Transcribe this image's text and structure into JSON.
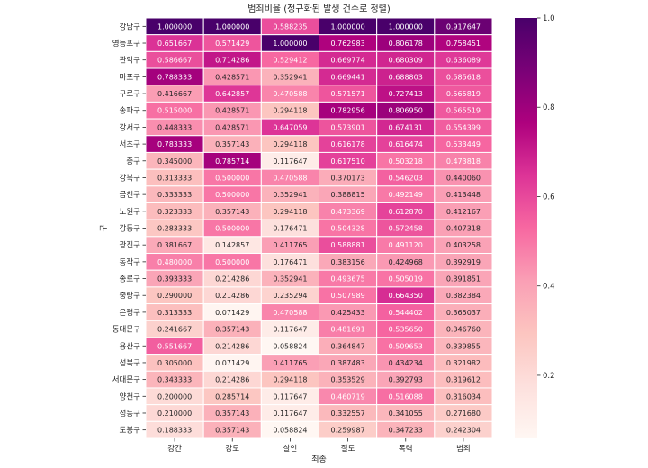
{
  "chart_data": {
    "type": "heatmap",
    "title": "범죄비율 (정규화된 발생 건수로 정렬)",
    "xlabel": "죄종",
    "ylabel": "구",
    "columns": [
      "강간",
      "강도",
      "살인",
      "절도",
      "폭력",
      "범죄"
    ],
    "rows": [
      "강남구",
      "영등포구",
      "관악구",
      "마포구",
      "구로구",
      "송파구",
      "강서구",
      "서초구",
      "중구",
      "강북구",
      "금천구",
      "노원구",
      "강동구",
      "광진구",
      "동작구",
      "종로구",
      "중랑구",
      "은평구",
      "동대문구",
      "용산구",
      "성북구",
      "서대문구",
      "양천구",
      "성동구",
      "도봉구"
    ],
    "values": [
      [
        1.0,
        1.0,
        0.588235,
        1.0,
        1.0,
        0.917647
      ],
      [
        0.651667,
        0.571429,
        1.0,
        0.762983,
        0.806178,
        0.758451
      ],
      [
        0.586667,
        0.714286,
        0.529412,
        0.669774,
        0.680309,
        0.636089
      ],
      [
        0.788333,
        0.428571,
        0.352941,
        0.669441,
        0.688803,
        0.585618
      ],
      [
        0.416667,
        0.642857,
        0.470588,
        0.571571,
        0.727413,
        0.565819
      ],
      [
        0.515,
        0.428571,
        0.294118,
        0.782956,
        0.80695,
        0.565519
      ],
      [
        0.448333,
        0.428571,
        0.647059,
        0.573901,
        0.674131,
        0.554399
      ],
      [
        0.783333,
        0.357143,
        0.294118,
        0.616178,
        0.616474,
        0.533449
      ],
      [
        0.345,
        0.785714,
        0.117647,
        0.61751,
        0.503218,
        0.473818
      ],
      [
        0.313333,
        0.5,
        0.470588,
        0.370173,
        0.546203,
        0.44006
      ],
      [
        0.333333,
        0.5,
        0.352941,
        0.388815,
        0.492149,
        0.413448
      ],
      [
        0.323333,
        0.357143,
        0.294118,
        0.473369,
        0.61287,
        0.412167
      ],
      [
        0.283333,
        0.5,
        0.176471,
        0.504328,
        0.572458,
        0.407318
      ],
      [
        0.381667,
        0.142857,
        0.411765,
        0.588881,
        0.49112,
        0.403258
      ],
      [
        0.48,
        0.5,
        0.176471,
        0.383156,
        0.424968,
        0.392919
      ],
      [
        0.393333,
        0.214286,
        0.352941,
        0.493675,
        0.505019,
        0.391851
      ],
      [
        0.29,
        0.214286,
        0.235294,
        0.507989,
        0.66435,
        0.382384
      ],
      [
        0.313333,
        0.071429,
        0.470588,
        0.425433,
        0.544402,
        0.365037
      ],
      [
        0.241667,
        0.357143,
        0.117647,
        0.481691,
        0.53565,
        0.34676
      ],
      [
        0.551667,
        0.214286,
        0.058824,
        0.364847,
        0.509653,
        0.339855
      ],
      [
        0.305,
        0.071429,
        0.411765,
        0.387483,
        0.434234,
        0.321982
      ],
      [
        0.343333,
        0.214286,
        0.294118,
        0.353529,
        0.392793,
        0.319612
      ],
      [
        0.2,
        0.285714,
        0.117647,
        0.460719,
        0.516088,
        0.316034
      ],
      [
        0.21,
        0.357143,
        0.117647,
        0.332557,
        0.341055,
        0.27168
      ],
      [
        0.188333,
        0.357143,
        0.058824,
        0.259987,
        0.347233,
        0.242304
      ]
    ],
    "colorbar": {
      "vmin": 0.058824,
      "vmax": 1.0,
      "ticks": [
        0.2,
        0.4,
        0.6,
        0.8,
        1.0
      ]
    },
    "colormap": "RdPu",
    "colormap_stops": [
      "#fff7f3",
      "#fde0dd",
      "#fcc5c0",
      "#fa9fb5",
      "#f768a1",
      "#dd3497",
      "#ae017e",
      "#7a0177",
      "#49006a"
    ],
    "grid_lines_color": "#ffffff"
  }
}
